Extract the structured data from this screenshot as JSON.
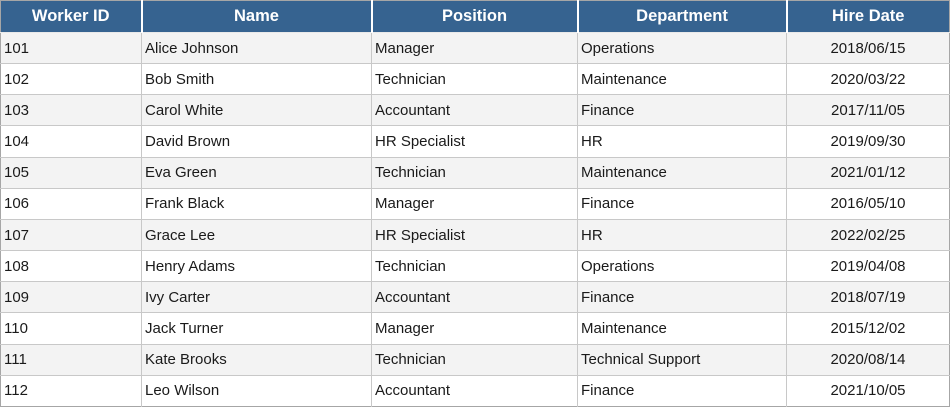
{
  "colors": {
    "header_bg": "#366390",
    "header_text": "#ffffff",
    "row_bg": "#ffffff",
    "row_alt_bg": "#f3f3f3",
    "grid_line": "#c8c8c8",
    "outer_border": "#a6a6a6",
    "body_text": "#1a1a1a"
  },
  "table": {
    "columns": [
      "Worker ID",
      "Name",
      "Position",
      "Department",
      "Hire Date"
    ],
    "rows": [
      [
        "101",
        "Alice Johnson",
        "Manager",
        "Operations",
        "2018/06/15"
      ],
      [
        "102",
        "Bob Smith",
        "Technician",
        "Maintenance",
        "2020/03/22"
      ],
      [
        "103",
        "Carol White",
        "Accountant",
        "Finance",
        "2017/11/05"
      ],
      [
        "104",
        "David Brown",
        "HR Specialist",
        "HR",
        "2019/09/30"
      ],
      [
        "105",
        "Eva Green",
        "Technician",
        "Maintenance",
        "2021/01/12"
      ],
      [
        "106",
        "Frank Black",
        "Manager",
        "Finance",
        "2016/05/10"
      ],
      [
        "107",
        "Grace Lee",
        "HR Specialist",
        "HR",
        "2022/02/25"
      ],
      [
        "108",
        "Henry Adams",
        "Technician",
        "Operations",
        "2019/04/08"
      ],
      [
        "109",
        "Ivy Carter",
        "Accountant",
        "Finance",
        "2018/07/19"
      ],
      [
        "110",
        "Jack Turner",
        "Manager",
        "Maintenance",
        "2015/12/02"
      ],
      [
        "111",
        "Kate Brooks",
        "Technician",
        "Technical Support",
        "2020/08/14"
      ],
      [
        "112",
        "Leo Wilson",
        "Accountant",
        "Finance",
        "2021/10/05"
      ]
    ]
  }
}
